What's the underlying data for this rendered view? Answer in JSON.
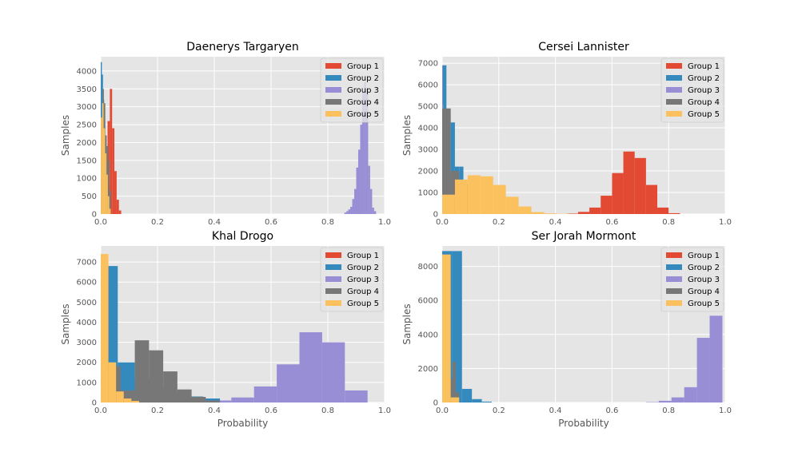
{
  "colors": {
    "Group 1": "#E24A33",
    "Group 2": "#348ABD",
    "Group 3": "#988ED5",
    "Group 4": "#777777",
    "Group 5": "#FBC15E",
    "panel_bg": "#E5E5E5",
    "grid": "#FFFFFF"
  },
  "chart_data": [
    {
      "type": "histogram",
      "title": "Daenerys Targaryen",
      "xlabel": "",
      "ylabel": "Samples",
      "xlim": [
        0,
        1
      ],
      "ylim": [
        0,
        4400
      ],
      "xticks": [
        "0.0",
        "0.2",
        "0.4",
        "0.6",
        "0.8",
        "1.0"
      ],
      "yticks": [
        "0",
        "500",
        "1000",
        "1500",
        "2000",
        "2500",
        "3000",
        "3500",
        "4000"
      ],
      "grid": true,
      "legend": "upper right",
      "series": [
        {
          "name": "Group 1",
          "bin_width": 0.008,
          "bins": [
            [
              0.008,
              100
            ],
            [
              0.016,
              150
            ],
            [
              0.024,
              2600
            ],
            [
              0.032,
              3500
            ],
            [
              0.04,
              2400
            ],
            [
              0.048,
              1200
            ],
            [
              0.056,
              400
            ],
            [
              0.064,
              100
            ]
          ]
        },
        {
          "name": "Group 2",
          "bin_width": 0.004,
          "bins": [
            [
              0.0,
              4250
            ],
            [
              0.004,
              3900
            ],
            [
              0.008,
              3200
            ],
            [
              0.012,
              2600
            ],
            [
              0.016,
              1300
            ],
            [
              0.02,
              500
            ]
          ]
        },
        {
          "name": "Group 3",
          "bin_width": 0.007,
          "bins": [
            [
              0.858,
              40
            ],
            [
              0.865,
              80
            ],
            [
              0.872,
              130
            ],
            [
              0.879,
              200
            ],
            [
              0.886,
              420
            ],
            [
              0.893,
              700
            ],
            [
              0.9,
              1300
            ],
            [
              0.907,
              1800
            ],
            [
              0.914,
              2500
            ],
            [
              0.921,
              3400
            ],
            [
              0.928,
              3700
            ],
            [
              0.935,
              3500
            ],
            [
              0.942,
              1350
            ],
            [
              0.949,
              700
            ],
            [
              0.956,
              180
            ],
            [
              0.963,
              80
            ]
          ]
        },
        {
          "name": "Group 4",
          "bin_width": 0.005,
          "bins": [
            [
              0.006,
              3500
            ],
            [
              0.011,
              3100
            ],
            [
              0.016,
              2200
            ],
            [
              0.021,
              1900
            ],
            [
              0.026,
              1500
            ],
            [
              0.031,
              650
            ]
          ]
        },
        {
          "name": "Group 5",
          "bin_width": 0.005,
          "bins": [
            [
              0.0,
              2700
            ],
            [
              0.005,
              3100
            ],
            [
              0.01,
              2400
            ],
            [
              0.015,
              1700
            ],
            [
              0.02,
              1100
            ],
            [
              0.025,
              500
            ],
            [
              0.03,
              150
            ]
          ]
        }
      ]
    },
    {
      "type": "histogram",
      "title": "Cersei Lannister",
      "xlabel": "",
      "ylabel": "Samples",
      "xlim": [
        0,
        1
      ],
      "ylim": [
        0,
        7300
      ],
      "xticks": [
        "0.0",
        "0.2",
        "0.4",
        "0.6",
        "0.8",
        "1.0"
      ],
      "yticks": [
        "0",
        "1000",
        "2000",
        "3000",
        "4000",
        "5000",
        "6000",
        "7000"
      ],
      "grid": true,
      "legend": "upper right",
      "series": [
        {
          "name": "Group 1",
          "bin_width": 0.04,
          "bins": [
            [
              0.44,
              20
            ],
            [
              0.48,
              100
            ],
            [
              0.52,
              300
            ],
            [
              0.56,
              850
            ],
            [
              0.6,
              1900
            ],
            [
              0.64,
              2900
            ],
            [
              0.68,
              2600
            ],
            [
              0.72,
              1350
            ],
            [
              0.76,
              300
            ],
            [
              0.8,
              40
            ]
          ]
        },
        {
          "name": "Group 2",
          "bin_width": 0.015,
          "bins": [
            [
              0.0,
              6900
            ],
            [
              0.015,
              4850
            ],
            [
              0.03,
              4250
            ],
            [
              0.045,
              2200
            ],
            [
              0.06,
              2200
            ],
            [
              0.075,
              1400
            ],
            [
              0.09,
              200
            ]
          ]
        },
        {
          "name": "Group 3",
          "bin_width": 0.002,
          "bins": [
            [
              0.0,
              6900
            ],
            [
              0.002,
              5100
            ],
            [
              0.004,
              3900
            ]
          ]
        },
        {
          "name": "Group 4",
          "bin_width": 0.03,
          "bins": [
            [
              0.0,
              4900
            ],
            [
              0.03,
              2000
            ],
            [
              0.06,
              1400
            ],
            [
              0.09,
              200
            ]
          ]
        },
        {
          "name": "Group 5",
          "bin_width": 0.045,
          "bins": [
            [
              0.0,
              900
            ],
            [
              0.045,
              1600
            ],
            [
              0.09,
              1800
            ],
            [
              0.135,
              1750
            ],
            [
              0.18,
              1350
            ],
            [
              0.225,
              800
            ],
            [
              0.27,
              350
            ],
            [
              0.315,
              90
            ],
            [
              0.36,
              30
            ],
            [
              0.405,
              10
            ]
          ]
        }
      ]
    },
    {
      "type": "histogram",
      "title": "Khal Drogo",
      "xlabel": "Probability",
      "ylabel": "Samples",
      "xlim": [
        0,
        1
      ],
      "ylim": [
        0,
        7800
      ],
      "xticks": [
        "0.0",
        "0.2",
        "0.4",
        "0.6",
        "0.8",
        "1.0"
      ],
      "yticks": [
        "0",
        "1000",
        "2000",
        "3000",
        "4000",
        "5000",
        "6000",
        "7000"
      ],
      "grid": true,
      "legend": "upper right",
      "series": [
        {
          "name": "Group 1",
          "bin_width": 0.01,
          "bins": []
        },
        {
          "name": "Group 2",
          "bin_width": 0.06,
          "bins": [
            [
              0.0,
              6800
            ],
            [
              0.06,
              2000
            ],
            [
              0.12,
              1200
            ],
            [
              0.18,
              700
            ],
            [
              0.24,
              500
            ],
            [
              0.3,
              300
            ],
            [
              0.36,
              200
            ]
          ]
        },
        {
          "name": "Group 3",
          "bin_width": 0.08,
          "bins": [
            [
              0.3,
              50
            ],
            [
              0.38,
              100
            ],
            [
              0.46,
              250
            ],
            [
              0.54,
              800
            ],
            [
              0.62,
              1900
            ],
            [
              0.7,
              3500
            ],
            [
              0.78,
              3000
            ],
            [
              0.86,
              600
            ]
          ]
        },
        {
          "name": "Group 4",
          "bin_width": 0.05,
          "bins": [
            [
              0.02,
              1800
            ],
            [
              0.07,
              600
            ],
            [
              0.12,
              3100
            ],
            [
              0.17,
              2600
            ],
            [
              0.22,
              1550
            ],
            [
              0.27,
              650
            ],
            [
              0.32,
              280
            ],
            [
              0.37,
              100
            ]
          ]
        },
        {
          "name": "Group 5",
          "bin_width": 0.027,
          "bins": [
            [
              0.0,
              7400
            ],
            [
              0.027,
              2000
            ],
            [
              0.054,
              550
            ],
            [
              0.081,
              200
            ],
            [
              0.108,
              80
            ]
          ]
        }
      ]
    },
    {
      "type": "histogram",
      "title": "Ser Jorah Mormont",
      "xlabel": "Probability",
      "ylabel": "Samples",
      "xlim": [
        0,
        1
      ],
      "ylim": [
        0,
        9200
      ],
      "xticks": [
        "0.0",
        "0.2",
        "0.4",
        "0.6",
        "0.8",
        "1.0"
      ],
      "yticks": [
        "0",
        "2000",
        "4000",
        "6000",
        "8000"
      ],
      "grid": true,
      "legend": "upper right",
      "series": [
        {
          "name": "Group 1",
          "bin_width": 0.01,
          "bins": []
        },
        {
          "name": "Group 2",
          "bin_width": 0.035,
          "bins": [
            [
              0.0,
              8900
            ],
            [
              0.035,
              8900
            ],
            [
              0.07,
              800
            ],
            [
              0.105,
              200
            ],
            [
              0.14,
              50
            ]
          ]
        },
        {
          "name": "Group 3",
          "bin_width": 0.045,
          "bins": [
            [
              0.72,
              20
            ],
            [
              0.765,
              100
            ],
            [
              0.81,
              300
            ],
            [
              0.855,
              900
            ],
            [
              0.9,
              3800
            ],
            [
              0.945,
              5100
            ]
          ]
        },
        {
          "name": "Group 4",
          "bin_width": 0.012,
          "bins": [
            [
              0.0,
              500
            ],
            [
              0.012,
              600
            ],
            [
              0.024,
              1400
            ],
            [
              0.036,
              2400
            ],
            [
              0.048,
              600
            ]
          ]
        },
        {
          "name": "Group 5",
          "bin_width": 0.03,
          "bins": [
            [
              0.0,
              8700
            ],
            [
              0.03,
              300
            ]
          ]
        }
      ]
    }
  ]
}
